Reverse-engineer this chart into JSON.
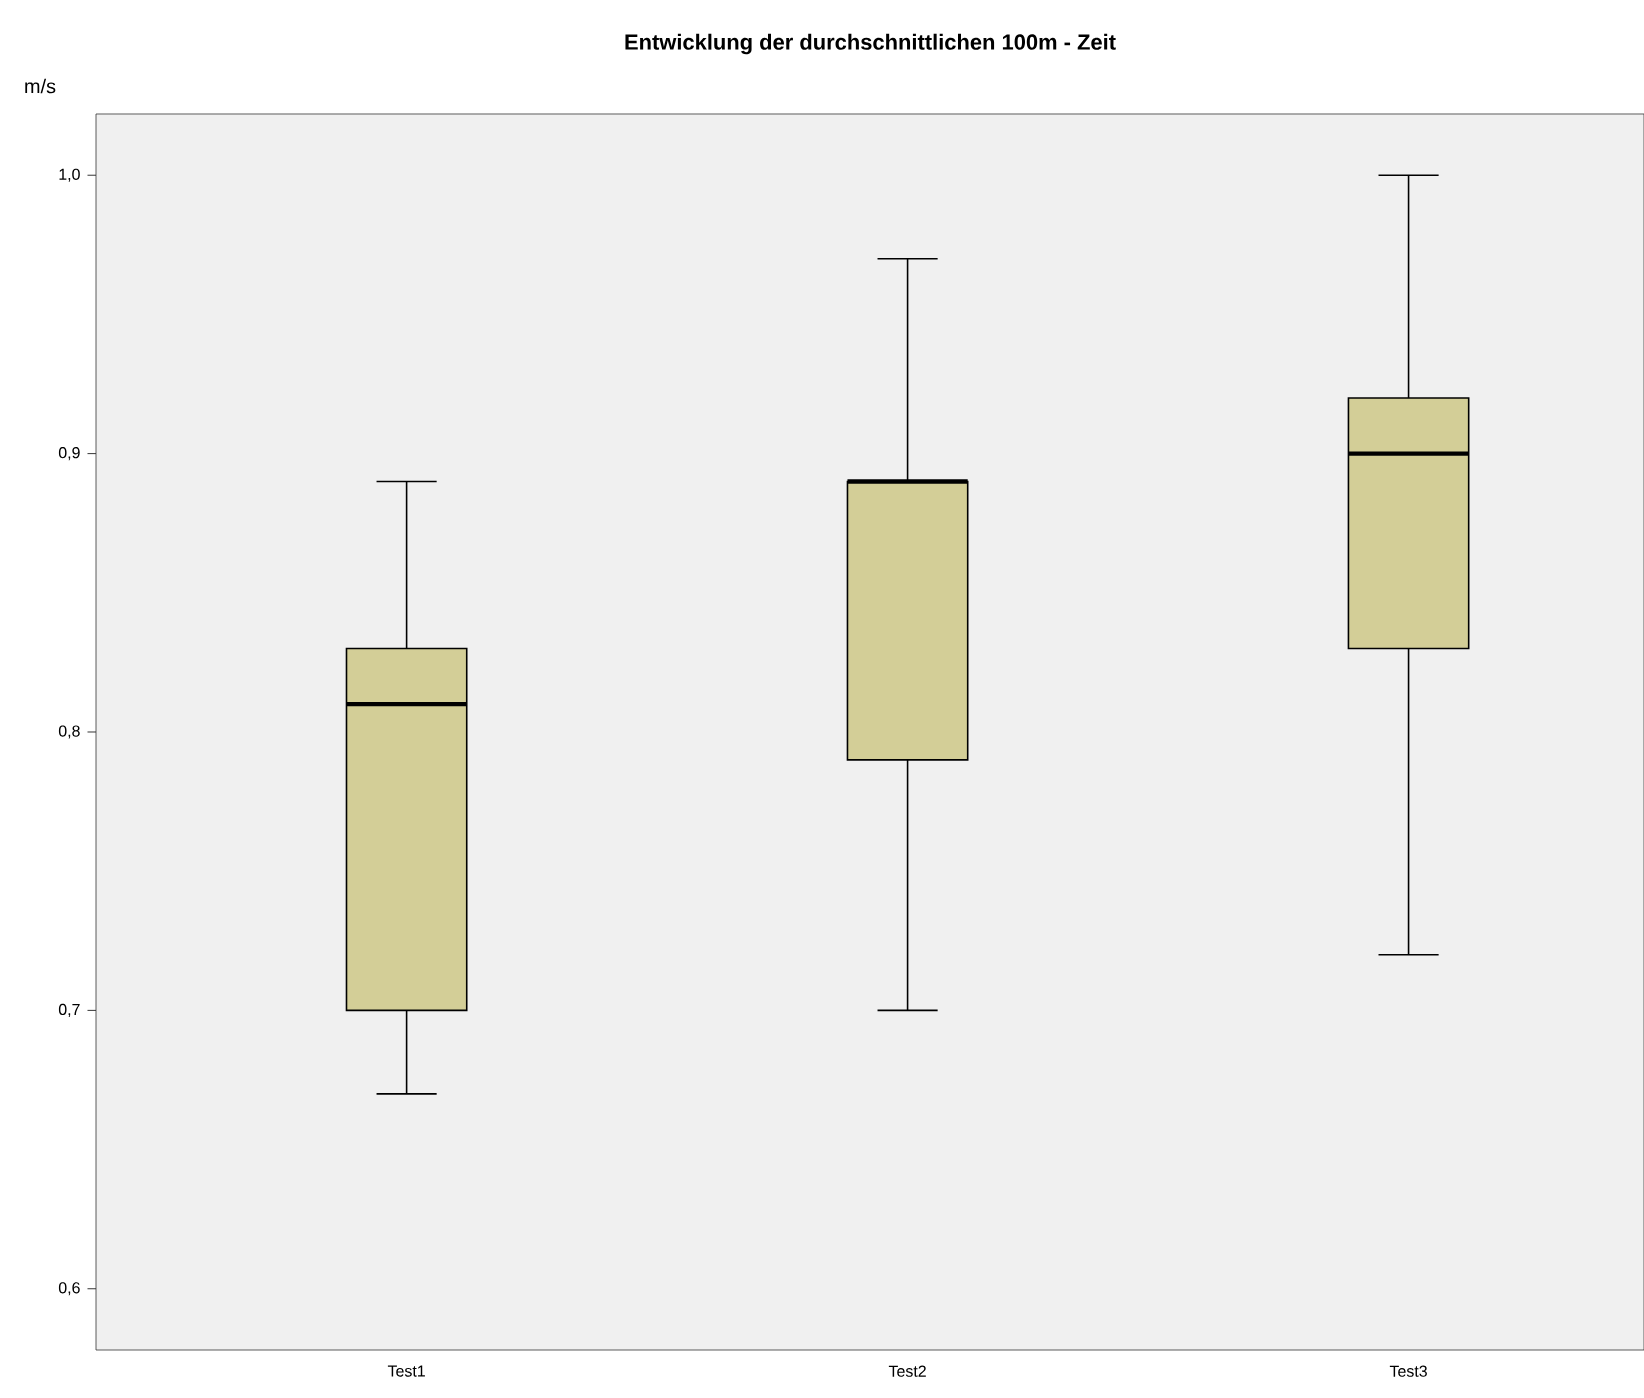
{
  "chart_data": {
    "type": "box",
    "title": "Entwicklung der durchschnittlichen 100m - Zeit",
    "ylabel": "m/s",
    "categories": [
      "Test1",
      "Test2",
      "Test3"
    ],
    "series": [
      {
        "color": "#d3ce97",
        "boxes": [
          {
            "low": 0.67,
            "q1": 0.7,
            "median": 0.81,
            "q3": 0.83,
            "high": 0.89
          },
          {
            "low": 0.7,
            "q1": 0.79,
            "median": 0.89,
            "q3": 0.89,
            "high": 0.97
          },
          {
            "low": 0.72,
            "q1": 0.83,
            "median": 0.9,
            "q3": 0.92,
            "high": 1.0
          }
        ]
      }
    ],
    "ylim": [
      0.578,
      1.022
    ],
    "yticks": [
      {
        "value": 0.6,
        "label": "0,6"
      },
      {
        "value": 0.7,
        "label": "0,7"
      },
      {
        "value": 0.8,
        "label": "0,8"
      },
      {
        "value": 0.9,
        "label": "0,9"
      },
      {
        "value": 1.0,
        "label": "1,0"
      }
    ]
  }
}
